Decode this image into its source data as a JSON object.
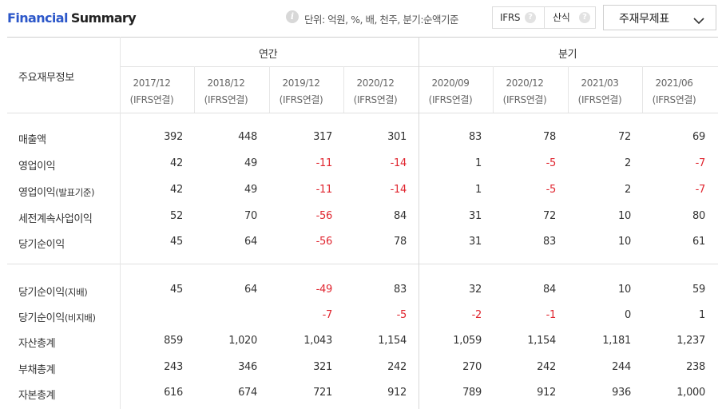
{
  "header": {
    "title_part1": "Financial",
    "title_part2": "Summary",
    "info_icon": "i",
    "unit_text": "단위: 억원, %, 배, 천주, 분기:순액기준",
    "toggle": {
      "option1": "IFRS",
      "option2": "산식",
      "help_icon": "?"
    },
    "statement_select": "주재무제표"
  },
  "table": {
    "corner_label": "주요재무정보",
    "groups": [
      {
        "label": "연간"
      },
      {
        "label": "분기"
      }
    ],
    "columns": [
      {
        "period": "2017/12",
        "basis": "(IFRS연결)"
      },
      {
        "period": "2018/12",
        "basis": "(IFRS연결)"
      },
      {
        "period": "2019/12",
        "basis": "(IFRS연결)"
      },
      {
        "period": "2020/12",
        "basis": "(IFRS연결)"
      },
      {
        "period": "2020/09",
        "basis": "(IFRS연결)"
      },
      {
        "period": "2020/12",
        "basis": "(IFRS연결)"
      },
      {
        "period": "2021/03",
        "basis": "(IFRS연결)"
      },
      {
        "period": "2021/06",
        "basis": "(IFRS연결)"
      }
    ],
    "rows": [
      {
        "label": "매출액",
        "sub": "",
        "values": [
          "392",
          "448",
          "317",
          "301",
          "83",
          "78",
          "72",
          "69"
        ]
      },
      {
        "label": "영업이익",
        "sub": "",
        "values": [
          "42",
          "49",
          "-11",
          "-14",
          "1",
          "-5",
          "2",
          "-7"
        ]
      },
      {
        "label": "영업이익",
        "sub": "(발표기준)",
        "values": [
          "42",
          "49",
          "-11",
          "-14",
          "1",
          "-5",
          "2",
          "-7"
        ]
      },
      {
        "label": "세전계속사업이익",
        "sub": "",
        "values": [
          "52",
          "70",
          "-56",
          "84",
          "31",
          "72",
          "10",
          "80"
        ]
      },
      {
        "label": "당기순이익",
        "sub": "",
        "values": [
          "45",
          "64",
          "-56",
          "78",
          "31",
          "83",
          "10",
          "61"
        ]
      },
      {
        "label": "당기순이익",
        "sub": "(지배)",
        "values": [
          "45",
          "64",
          "-49",
          "83",
          "32",
          "84",
          "10",
          "59"
        ]
      },
      {
        "label": "당기순이익",
        "sub": "(비지배)",
        "values": [
          "",
          "",
          "-7",
          "-5",
          "-2",
          "-1",
          "0",
          "1"
        ]
      },
      {
        "label": "자산총계",
        "sub": "",
        "values": [
          "859",
          "1,020",
          "1,043",
          "1,154",
          "1,059",
          "1,154",
          "1,181",
          "1,237"
        ]
      },
      {
        "label": "부채총계",
        "sub": "",
        "values": [
          "243",
          "346",
          "321",
          "242",
          "270",
          "242",
          "244",
          "238"
        ]
      },
      {
        "label": "자본총계",
        "sub": "",
        "values": [
          "616",
          "674",
          "721",
          "912",
          "789",
          "912",
          "936",
          "1,000"
        ]
      }
    ]
  },
  "colors": {
    "accent": "#2c57c9",
    "negative": "#e0252f",
    "text": "#333333",
    "border": "#e1e1e1"
  },
  "icons": {
    "info": "info-icon",
    "help": "help-icon",
    "dropdown": "chevron-down-icon"
  }
}
